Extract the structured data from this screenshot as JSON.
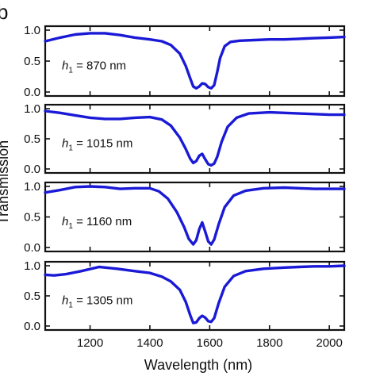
{
  "panel_letter": "b",
  "colors": {
    "curve": "#1a1ad6",
    "axis": "#111111"
  },
  "chart_data": {
    "type": "line",
    "xlabel": "Wavelength (nm)",
    "ylabel": "Transmission",
    "xlim": [
      1050,
      2050
    ],
    "ylim": [
      0.0,
      1.0
    ],
    "x_ticks": [
      1200,
      1400,
      1600,
      1800,
      2000
    ],
    "y_ticks": [
      0.0,
      0.5,
      1.0
    ],
    "y_tick_labels": [
      "0.0",
      "0.5",
      "1.0"
    ],
    "grid": false,
    "panels": [
      {
        "label_var": "h",
        "label_sub": "1",
        "label_value": " = 870 nm",
        "x": [
          1050,
          1100,
          1150,
          1200,
          1250,
          1300,
          1350,
          1400,
          1440,
          1470,
          1500,
          1520,
          1535,
          1545,
          1555,
          1565,
          1575,
          1585,
          1595,
          1605,
          1615,
          1625,
          1635,
          1650,
          1670,
          1700,
          1750,
          1800,
          1850,
          1900,
          1950,
          2000,
          2050
        ],
        "y": [
          0.82,
          0.88,
          0.93,
          0.95,
          0.95,
          0.92,
          0.88,
          0.85,
          0.82,
          0.76,
          0.62,
          0.42,
          0.22,
          0.09,
          0.06,
          0.09,
          0.14,
          0.13,
          0.08,
          0.06,
          0.11,
          0.32,
          0.55,
          0.74,
          0.81,
          0.83,
          0.84,
          0.85,
          0.85,
          0.86,
          0.87,
          0.88,
          0.89
        ]
      },
      {
        "label_var": "h",
        "label_sub": "1",
        "label_value": " = 1015 nm",
        "x": [
          1050,
          1100,
          1150,
          1200,
          1250,
          1300,
          1350,
          1400,
          1440,
          1470,
          1500,
          1520,
          1535,
          1545,
          1555,
          1565,
          1575,
          1585,
          1595,
          1605,
          1615,
          1625,
          1640,
          1660,
          1690,
          1730,
          1800,
          1850,
          1900,
          1950,
          2000,
          2050
        ],
        "y": [
          0.96,
          0.93,
          0.89,
          0.85,
          0.83,
          0.83,
          0.85,
          0.86,
          0.82,
          0.72,
          0.52,
          0.33,
          0.17,
          0.1,
          0.13,
          0.22,
          0.25,
          0.16,
          0.08,
          0.06,
          0.09,
          0.2,
          0.45,
          0.7,
          0.85,
          0.92,
          0.94,
          0.93,
          0.92,
          0.91,
          0.9,
          0.9
        ]
      },
      {
        "label_var": "h",
        "label_sub": "1",
        "label_value": " = 1160 nm",
        "x": [
          1050,
          1100,
          1150,
          1200,
          1250,
          1300,
          1350,
          1400,
          1430,
          1460,
          1490,
          1515,
          1530,
          1545,
          1555,
          1565,
          1575,
          1585,
          1595,
          1605,
          1615,
          1630,
          1650,
          1680,
          1720,
          1780,
          1850,
          1900,
          1950,
          2000,
          2050
        ],
        "y": [
          0.9,
          0.94,
          0.99,
          1.0,
          0.99,
          0.96,
          0.97,
          0.97,
          0.92,
          0.8,
          0.58,
          0.33,
          0.14,
          0.05,
          0.12,
          0.3,
          0.41,
          0.26,
          0.1,
          0.05,
          0.13,
          0.38,
          0.66,
          0.85,
          0.93,
          0.97,
          0.98,
          0.97,
          0.96,
          0.96,
          0.96
        ]
      },
      {
        "label_var": "h",
        "label_sub": "1",
        "label_value": " = 1305 nm",
        "x": [
          1050,
          1080,
          1120,
          1170,
          1230,
          1290,
          1350,
          1400,
          1440,
          1470,
          1500,
          1520,
          1535,
          1545,
          1555,
          1565,
          1575,
          1585,
          1595,
          1605,
          1615,
          1630,
          1650,
          1680,
          1720,
          1780,
          1850,
          1900,
          1950,
          2000,
          2050
        ],
        "y": [
          0.85,
          0.84,
          0.86,
          0.91,
          0.98,
          0.95,
          0.91,
          0.88,
          0.82,
          0.74,
          0.6,
          0.4,
          0.18,
          0.05,
          0.06,
          0.13,
          0.17,
          0.14,
          0.08,
          0.07,
          0.13,
          0.38,
          0.65,
          0.83,
          0.91,
          0.95,
          0.97,
          0.98,
          0.99,
          0.99,
          1.0
        ]
      }
    ]
  }
}
